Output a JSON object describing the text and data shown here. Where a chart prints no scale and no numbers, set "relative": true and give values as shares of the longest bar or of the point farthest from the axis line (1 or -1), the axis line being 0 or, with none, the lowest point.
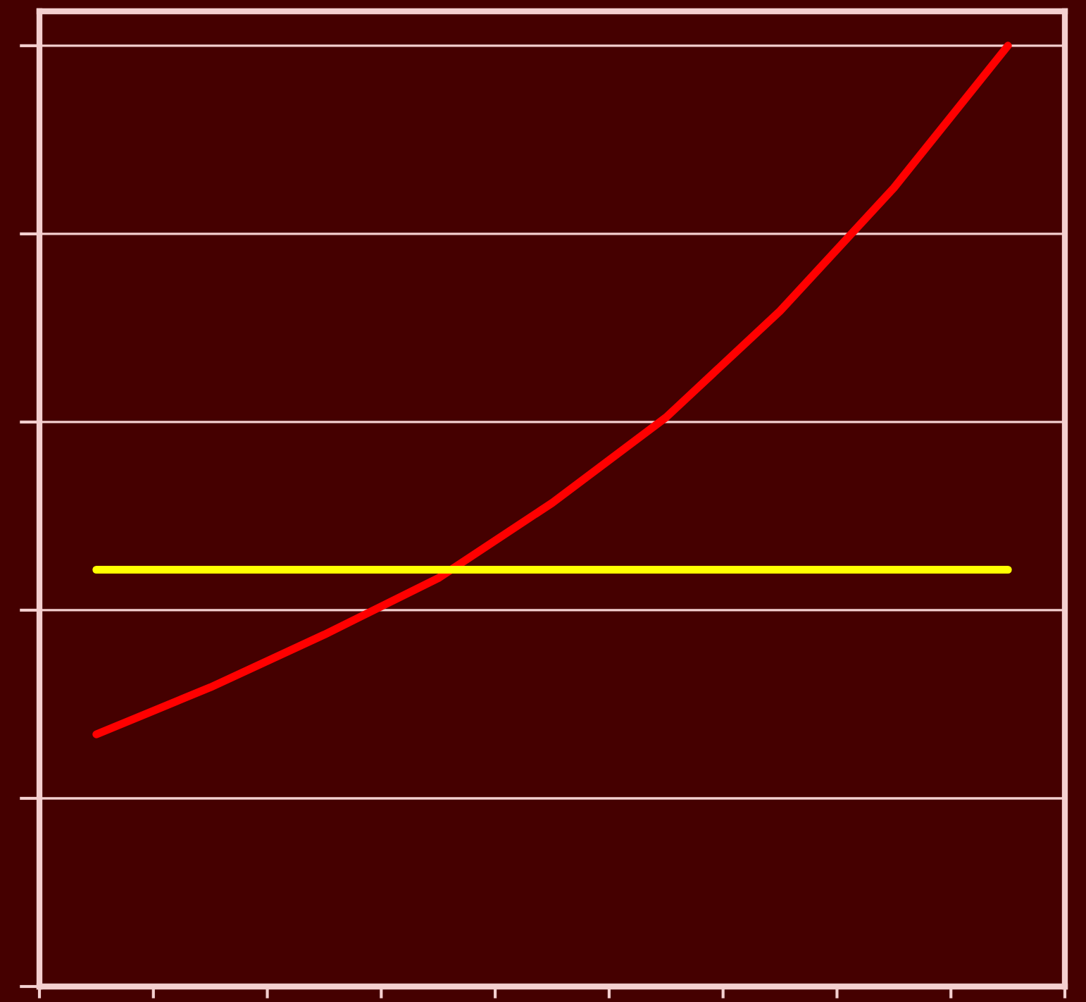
{
  "chart_data": {
    "type": "line",
    "relative": true,
    "categories": [
      null,
      null,
      null,
      null,
      null,
      null,
      null,
      null,
      null
    ],
    "series": [
      {
        "color": "#ff0000",
        "values": [
          0.268,
          0.318,
          0.374,
          0.434,
          0.514,
          0.605,
          0.718,
          0.849,
          1
        ]
      },
      {
        "color": "#ffff00",
        "values": [
          0.443,
          0.443,
          0.443,
          0.443,
          0.443,
          0.443,
          0.443,
          0.443,
          0.443
        ]
      }
    ],
    "grid": "y",
    "tick_labels": false,
    "legend": false,
    "marker": "none",
    "line_style": "solid"
  }
}
